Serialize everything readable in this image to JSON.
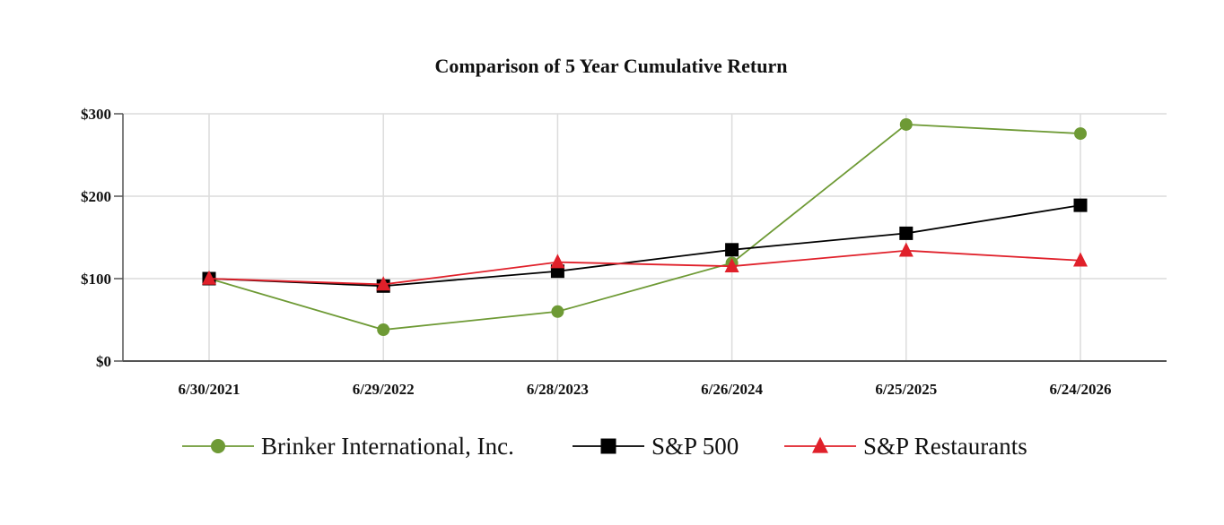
{
  "chart_data": {
    "type": "line",
    "title": "Comparison of 5 Year Cumulative Return",
    "categories": [
      "6/30/2021",
      "6/29/2022",
      "6/28/2023",
      "6/26/2024",
      "6/25/2025",
      "6/24/2026"
    ],
    "ylim": [
      0,
      300
    ],
    "yticks": [
      0,
      100,
      200,
      300
    ],
    "ytick_labels": [
      "$0",
      "$100",
      "$200",
      "$300"
    ],
    "grid": true,
    "legend_position": "bottom",
    "series": [
      {
        "name": "Brinker International, Inc.",
        "color": "#6e9a35",
        "marker": "circle",
        "values": [
          100,
          38,
          60,
          119,
          287,
          276
        ]
      },
      {
        "name": "S&P 500",
        "color": "#000000",
        "marker": "square",
        "values": [
          100,
          91,
          109,
          135,
          155,
          189
        ]
      },
      {
        "name": "S&P Restaurants",
        "color": "#e0202a",
        "marker": "triangle",
        "values": [
          100,
          93,
          120,
          115,
          134,
          122
        ]
      }
    ]
  }
}
